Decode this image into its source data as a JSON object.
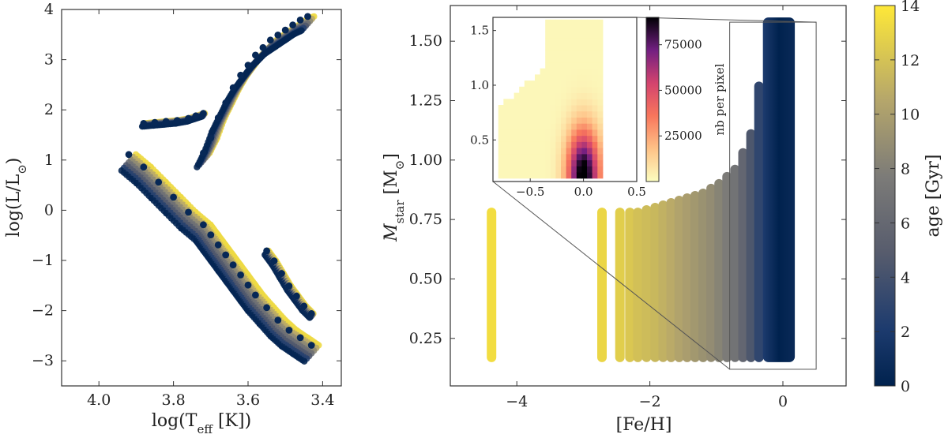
{
  "chart_data": [
    {
      "type": "scatter",
      "xlabel": "log(T",
      "xlabel_sub": "eff",
      "xlabel_tail": " [K])",
      "ylabel": "log(L/L",
      "ylabel_sub": "⊙",
      "ylabel_tail": ")",
      "xlim": [
        4.1,
        3.35
      ],
      "ylim": [
        -3.5,
        4.0
      ],
      "xticks": [
        "4.0",
        "3.8",
        "3.6",
        "3.4"
      ],
      "xtick_values": [
        4.0,
        3.8,
        3.6,
        3.4
      ],
      "yticks": [
        "4",
        "3",
        "2",
        "1",
        "0",
        "−1",
        "−2",
        "−3"
      ],
      "ytick_values": [
        4,
        3,
        2,
        1,
        0,
        -1,
        -2,
        -3
      ],
      "color_by": "age",
      "series": [
        {
          "x": [
            3.92,
            3.88,
            3.84,
            3.8,
            3.76,
            3.72,
            3.7,
            3.68,
            3.66,
            3.64,
            3.62,
            3.6,
            3.58,
            3.55,
            3.52,
            3.49,
            3.46,
            3.43
          ],
          "y": [
            0.95,
            0.7,
            0.4,
            0.1,
            -0.2,
            -0.45,
            -0.65,
            -0.85,
            -1.05,
            -1.25,
            -1.45,
            -1.65,
            -1.85,
            -2.1,
            -2.35,
            -2.55,
            -2.7,
            -2.85
          ]
        },
        {
          "x": [
            3.72,
            3.7,
            3.68,
            3.66,
            3.64,
            3.62,
            3.6,
            3.58,
            3.56,
            3.54,
            3.52,
            3.5,
            3.48,
            3.46,
            3.44
          ],
          "y": [
            1.0,
            1.3,
            1.7,
            2.0,
            2.3,
            2.55,
            2.75,
            2.95,
            3.1,
            3.25,
            3.35,
            3.45,
            3.55,
            3.65,
            3.72
          ]
        },
        {
          "x": [
            3.88,
            3.85,
            3.82,
            3.79,
            3.76,
            3.74,
            3.72
          ],
          "y": [
            1.7,
            1.72,
            1.74,
            1.76,
            1.8,
            1.85,
            1.9
          ]
        },
        {
          "x": [
            3.55,
            3.53,
            3.51,
            3.49,
            3.47,
            3.45,
            3.43
          ],
          "y": [
            -0.85,
            -1.05,
            -1.3,
            -1.55,
            -1.75,
            -1.95,
            -2.1
          ]
        }
      ]
    },
    {
      "type": "scatter",
      "xlabel": "[Fe/H]",
      "ylabel": "M",
      "ylabel_sub": "star",
      "ylabel_tail": " [M",
      "ylabel_sub2": "⊙",
      "ylabel_tail2": "]",
      "xlim": [
        -5.0,
        0.95
      ],
      "ylim": [
        0.05,
        1.65
      ],
      "xticks": [
        "−4",
        "−2",
        "0"
      ],
      "xtick_values": [
        -4,
        -2,
        0
      ],
      "yticks": [
        "1.50",
        "1.25",
        "1.00",
        "0.75",
        "0.50",
        "0.25"
      ],
      "ytick_values": [
        1.5,
        1.25,
        1.0,
        0.75,
        0.5,
        0.25
      ],
      "columns": [
        {
          "feh": -4.38,
          "mmax": 0.8,
          "age": 13.5
        },
        {
          "feh": -2.72,
          "mmax": 0.8,
          "age": 13.2
        },
        {
          "feh": -2.45,
          "mmax": 0.8,
          "age": 12.8
        },
        {
          "feh": -2.3,
          "mmax": 0.8,
          "age": 12.5
        },
        {
          "feh": -2.18,
          "mmax": 0.8,
          "age": 12.2
        },
        {
          "feh": -2.05,
          "mmax": 0.81,
          "age": 12.0
        },
        {
          "feh": -1.92,
          "mmax": 0.82,
          "age": 11.8
        },
        {
          "feh": -1.8,
          "mmax": 0.83,
          "age": 11.5
        },
        {
          "feh": -1.68,
          "mmax": 0.84,
          "age": 11.2
        },
        {
          "feh": -1.56,
          "mmax": 0.85,
          "age": 10.8
        },
        {
          "feh": -1.44,
          "mmax": 0.86,
          "age": 10.4
        },
        {
          "feh": -1.32,
          "mmax": 0.87,
          "age": 10.0
        },
        {
          "feh": -1.2,
          "mmax": 0.88,
          "age": 9.6
        },
        {
          "feh": -1.08,
          "mmax": 0.9,
          "age": 9.2
        },
        {
          "feh": -0.96,
          "mmax": 0.92,
          "age": 8.6
        },
        {
          "feh": -0.84,
          "mmax": 0.95,
          "age": 8.0
        },
        {
          "feh": -0.72,
          "mmax": 0.98,
          "age": 7.2
        },
        {
          "feh": -0.6,
          "mmax": 1.05,
          "age": 6.0
        },
        {
          "feh": -0.48,
          "mmax": 1.13,
          "age": 4.5
        },
        {
          "feh": -0.36,
          "mmax": 1.33,
          "age": 3.0
        }
      ],
      "dense_band": {
        "feh_min": -0.3,
        "feh_max": 0.18,
        "mmax": 1.6,
        "mmin": 0.15
      },
      "mmin": 0.15,
      "zoom_box": {
        "x": [
          -0.8,
          0.5
        ],
        "y": [
          0.12,
          1.58
        ]
      },
      "colorbar": {
        "label": "age [Gyr]",
        "range": [
          0,
          14
        ],
        "ticks": [
          "14",
          "12",
          "10",
          "8",
          "6",
          "4",
          "2",
          "0"
        ],
        "tick_values": [
          14,
          12,
          10,
          8,
          6,
          4,
          2,
          0
        ]
      }
    },
    {
      "type": "heatmap",
      "xlim": [
        -0.85,
        0.5
      ],
      "ylim": [
        0.12,
        1.62
      ],
      "xticks": [
        "−0.5",
        "0.0",
        "0.5"
      ],
      "xtick_values": [
        -0.5,
        0.0,
        0.5
      ],
      "yticks": [
        "1.5",
        "1.0",
        "0.5"
      ],
      "ytick_values": [
        1.5,
        1.0,
        0.5
      ],
      "colorbar": {
        "label": "nb per pixel",
        "range": [
          0,
          90000
        ],
        "ticks": [
          "75000",
          "50000",
          "25000"
        ],
        "tick_values": [
          75000,
          50000,
          25000
        ]
      }
    }
  ]
}
